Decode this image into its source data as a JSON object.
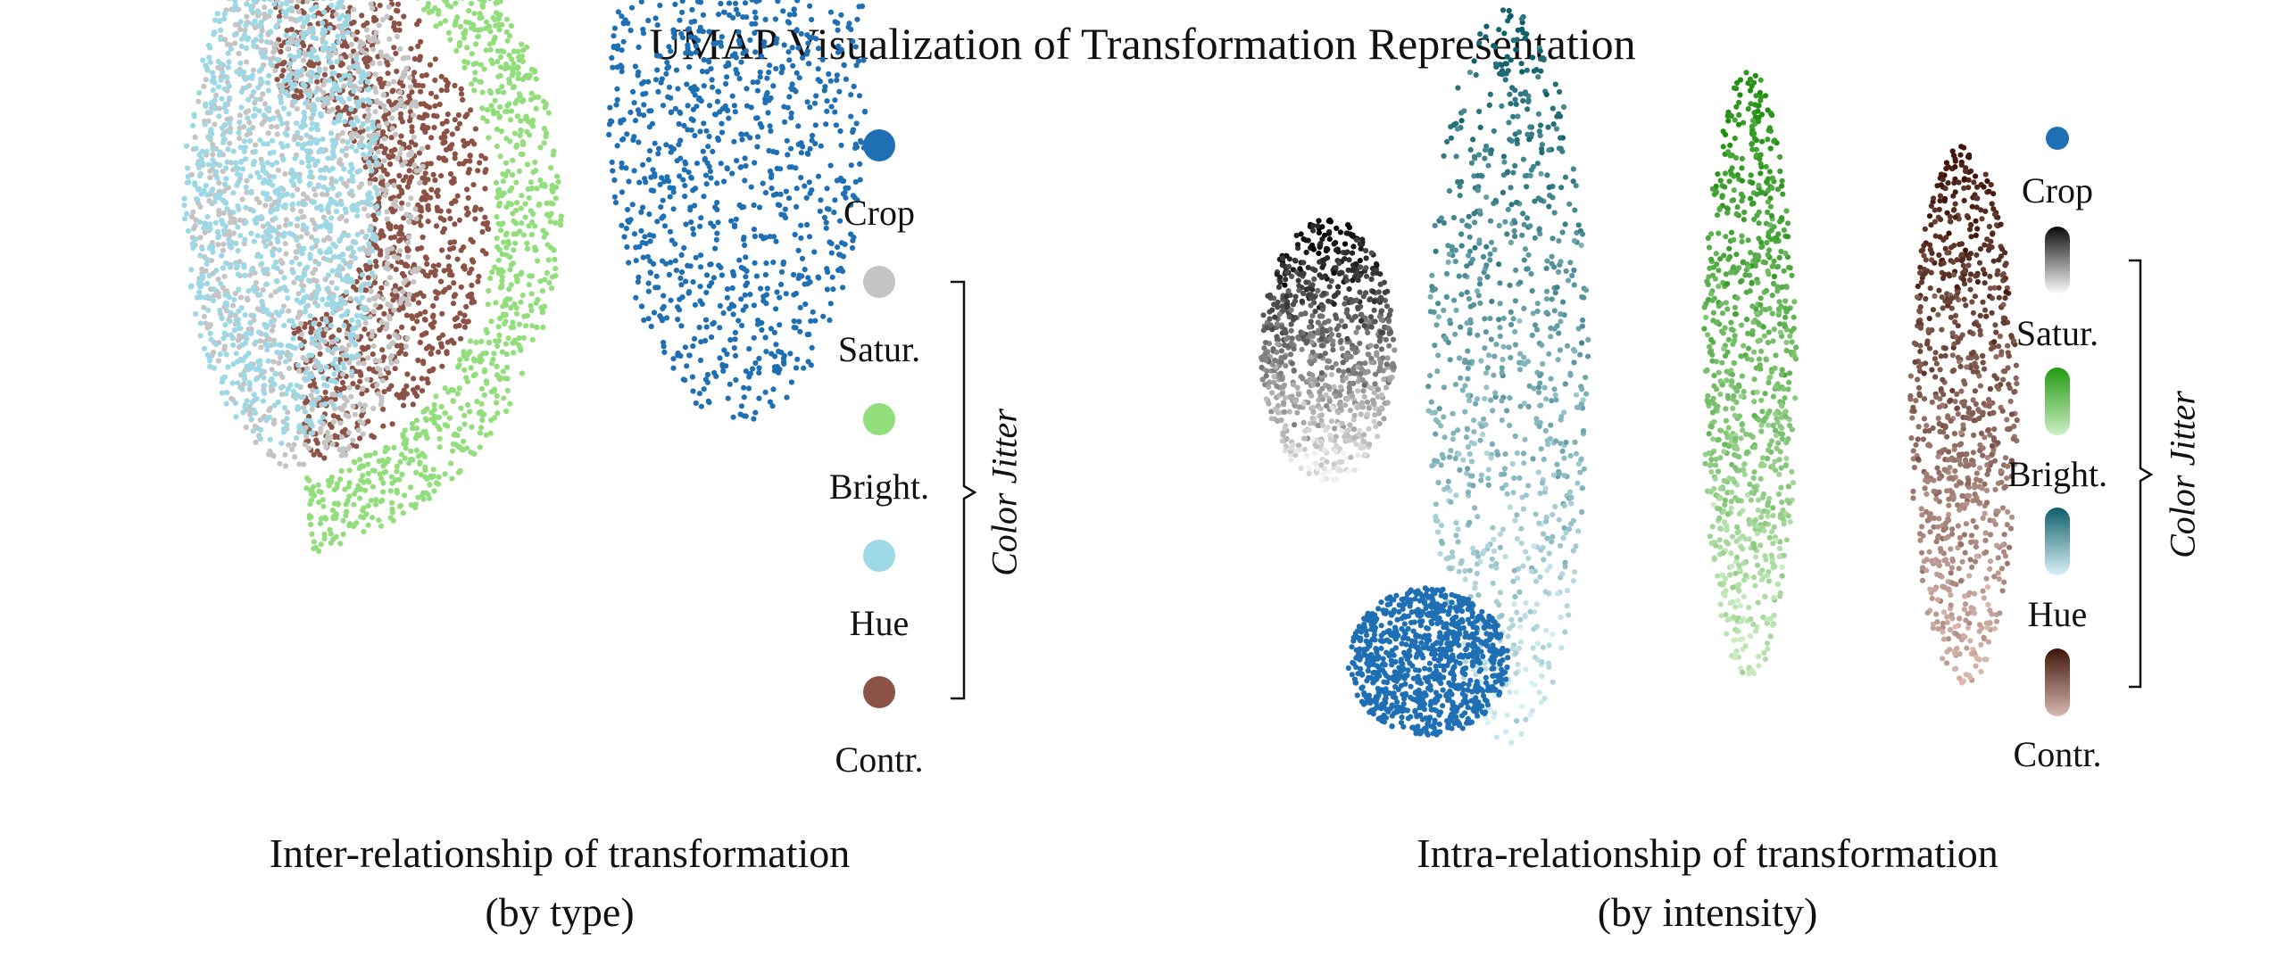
{
  "title": "UMAP Visualization of Transformation Representation",
  "chart_data": [
    {
      "type": "scatter",
      "title": "",
      "caption_line1": "Inter-relationship of transformation",
      "caption_line2": "(by type)",
      "legend": [
        {
          "label": "Crop",
          "color": "#1f6fb4"
        },
        {
          "label": "Satur.",
          "color": "#c4c4c4"
        },
        {
          "label": "Bright.",
          "color": "#93de7c"
        },
        {
          "label": "Hue",
          "color": "#9dd8e6"
        },
        {
          "label": "Contr.",
          "color": "#8c5246"
        }
      ],
      "bracket_label": "Color Jitter",
      "clusters": [
        {
          "name": "Bright.",
          "shape": "arc",
          "cx": 3.3,
          "cy": 4.6,
          "r_inner": 3.5,
          "r_outer": 4.5,
          "color": "#93de7c"
        },
        {
          "name": "Contr.",
          "shape": "arc",
          "cx": 3.4,
          "cy": 4.6,
          "r_inner": 1.5,
          "r_outer": 3.3,
          "color": "#8c5246"
        },
        {
          "name": "Satur.",
          "shape": "blob",
          "cx": 3.9,
          "cy": 4.7,
          "rx": 1.8,
          "ry": 2.2,
          "color": "#c4c4c4"
        },
        {
          "name": "Hue",
          "shape": "blob",
          "cx": 3.5,
          "cy": 4.7,
          "rx": 1.5,
          "ry": 2.0,
          "color": "#9dd8e6"
        },
        {
          "name": "Crop",
          "shape": "blob",
          "cx": 10.5,
          "cy": 5.5,
          "rx": 2.0,
          "ry": 2.6,
          "color": "#1f6fb4"
        }
      ]
    },
    {
      "type": "scatter",
      "title": "",
      "caption_line1": "Intra-relationship of transformation",
      "caption_line2": "(by intensity)",
      "legend": [
        {
          "label": "Crop",
          "color": "#1f6fb4",
          "gradient": false
        },
        {
          "label": "Satur.",
          "from": "#0a0a0a",
          "to": "#ffffff",
          "gradient": true
        },
        {
          "label": "Bright.",
          "from": "#229a10",
          "to": "#cdeec4",
          "gradient": true
        },
        {
          "label": "Hue",
          "from": "#0e5f6a",
          "to": "#d7f1f6",
          "gradient": true
        },
        {
          "label": "Contr.",
          "from": "#3e1408",
          "to": "#d8b8b0",
          "gradient": true
        }
      ],
      "bracket_label": "Color Jitter",
      "clusters": [
        {
          "name": "Satur.",
          "from": "#050505",
          "to": "#f2f2f2",
          "cx": 2.1,
          "cy": 5.3,
          "rx": 1.0,
          "ry": 1.6
        },
        {
          "name": "Hue",
          "from": "#0e5f6a",
          "to": "#d7f1f6",
          "cx": 4.8,
          "cy": 5.0,
          "rx": 1.2,
          "ry": 4.5
        },
        {
          "name": "Crop",
          "color": "#1f6fb4",
          "cx": 3.6,
          "cy": 1.5,
          "rx": 1.2,
          "ry": 0.9
        },
        {
          "name": "Bright.",
          "from": "#1e8e0e",
          "to": "#cdeec4",
          "cx": 8.4,
          "cy": 5.0,
          "rx": 0.7,
          "ry": 3.7
        },
        {
          "name": "Contr.",
          "from": "#3e1408",
          "to": "#d8b8b0",
          "cx": 11.6,
          "cy": 4.5,
          "rx": 0.8,
          "ry": 3.3
        }
      ]
    }
  ]
}
